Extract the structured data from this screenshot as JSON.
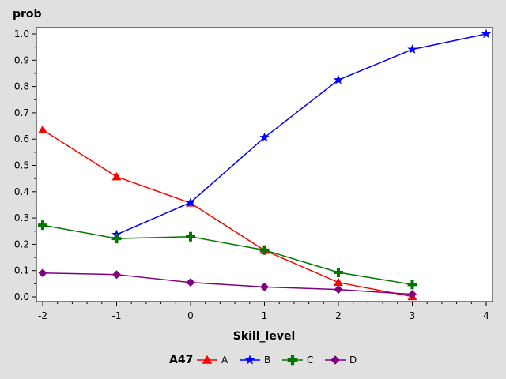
{
  "chart_data": {
    "type": "line",
    "ylabel": "prob",
    "xlabel": "Skill_level",
    "xlim": [
      -2,
      4
    ],
    "ylim": [
      0,
      1
    ],
    "xticks": [
      "-2",
      "-1",
      "0",
      "1",
      "2",
      "3",
      "4"
    ],
    "yticks": [
      "0.0",
      "0.1",
      "0.2",
      "0.3",
      "0.4",
      "0.5",
      "0.6",
      "0.7",
      "0.8",
      "0.9",
      "1.0"
    ],
    "grid": false,
    "legend_title": "A47",
    "legend_position": "bottom",
    "series": [
      {
        "name": "A",
        "color": "#ff0000",
        "marker": "triangle",
        "x": [
          -2,
          -1,
          0,
          1,
          2,
          3
        ],
        "y": [
          0.635,
          0.457,
          0.357,
          0.177,
          0.055,
          0.001
        ]
      },
      {
        "name": "B",
        "color": "#0000ff",
        "marker": "star",
        "x": [
          -1,
          0,
          1,
          2,
          3,
          4
        ],
        "y": [
          0.237,
          0.359,
          0.606,
          0.825,
          0.941,
          1.0
        ]
      },
      {
        "name": "C",
        "color": "#007700",
        "marker": "plus",
        "x": [
          -2,
          -1,
          0,
          1,
          2,
          3
        ],
        "y": [
          0.273,
          0.222,
          0.229,
          0.178,
          0.093,
          0.047
        ]
      },
      {
        "name": "D",
        "color": "#800080",
        "marker": "diamond",
        "x": [
          -2,
          -1,
          0,
          1,
          2,
          3
        ],
        "y": [
          0.091,
          0.085,
          0.055,
          0.038,
          0.028,
          0.01
        ]
      }
    ]
  }
}
